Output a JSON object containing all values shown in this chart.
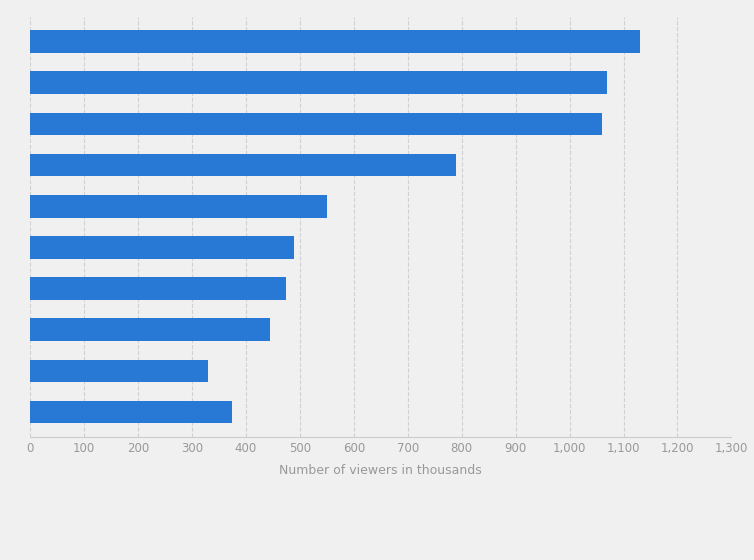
{
  "values": [
    1130,
    1070,
    1060,
    790,
    550,
    490,
    475,
    445,
    330,
    375
  ],
  "bar_color": "#2878d6",
  "xlabel": "Number of viewers in thousands",
  "xlim": [
    0,
    1300
  ],
  "xticks": [
    0,
    100,
    200,
    300,
    400,
    500,
    600,
    700,
    800,
    900,
    1000,
    1100,
    1200,
    1300
  ],
  "xtick_labels": [
    "0",
    "100",
    "200",
    "300",
    "400",
    "500",
    "600",
    "700",
    "800",
    "900",
    "1,000",
    "1,100",
    "1,200",
    "1,300"
  ],
  "background_color": "#f0f0f0",
  "plot_background_color": "#f0f0f0",
  "grid_color": "#d0d0d0",
  "bar_height": 0.55,
  "xlabel_fontsize": 9,
  "xtick_fontsize": 8.5
}
